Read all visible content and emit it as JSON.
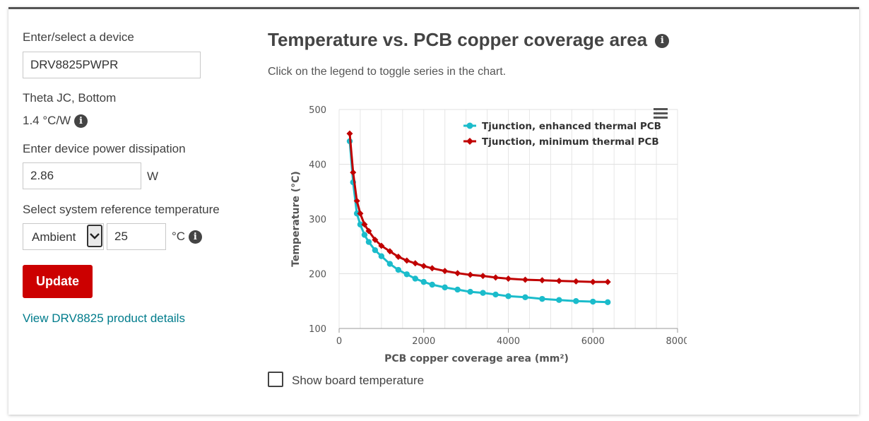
{
  "left_panel": {
    "device_label": "Enter/select a device",
    "device_value": "DRV8825PWPR",
    "theta_label": "Theta JC, Bottom",
    "theta_value": "1.4 °C/W",
    "power_label": "Enter device power dissipation",
    "power_value": "2.86",
    "power_unit": "W",
    "ref_temp_label": "Select system reference temperature",
    "ref_temp_option": "Ambient",
    "ref_temp_value": "25",
    "ref_temp_unit": "°C",
    "update_button": "Update",
    "details_link": "View DRV8825 product details"
  },
  "main": {
    "title": "Temperature vs. PCB copper coverage area",
    "subtitle": "Click on the legend to toggle series in the chart.",
    "show_board_label": "Show board temperature",
    "show_board_checked": false
  },
  "icons": {
    "info": "info-icon",
    "menu": "hamburger-menu-icon",
    "select": "chevron-down-icon"
  },
  "colors": {
    "accent_red": "#cc0000",
    "link_teal": "#007c8c",
    "series_enhanced": "#1bbccb",
    "series_minimum": "#c00000"
  },
  "chart_data": {
    "type": "line",
    "xlabel": "PCB copper coverage area (mm²)",
    "ylabel": "Temperature (°C)",
    "xlim": [
      0,
      8000
    ],
    "ylim": [
      100,
      500
    ],
    "xticks": [
      0,
      2000,
      4000,
      6000,
      8000
    ],
    "yticks": [
      100,
      200,
      300,
      400,
      500
    ],
    "grid": true,
    "legend_position": "top-right",
    "series": [
      {
        "name": "Tjunction, enhanced thermal PCB",
        "marker": "circle",
        "color": "#1bbccb",
        "points": [
          [
            250,
            442
          ],
          [
            330,
            367
          ],
          [
            420,
            310
          ],
          [
            500,
            290
          ],
          [
            600,
            271
          ],
          [
            700,
            258
          ],
          [
            850,
            243
          ],
          [
            1000,
            232
          ],
          [
            1200,
            218
          ],
          [
            1400,
            207
          ],
          [
            1600,
            199
          ],
          [
            1800,
            191
          ],
          [
            2000,
            185
          ],
          [
            2200,
            180
          ],
          [
            2500,
            175
          ],
          [
            2800,
            171
          ],
          [
            3100,
            167
          ],
          [
            3400,
            165
          ],
          [
            3700,
            162
          ],
          [
            4000,
            159
          ],
          [
            4400,
            157
          ],
          [
            4800,
            154
          ],
          [
            5200,
            152
          ],
          [
            5600,
            150
          ],
          [
            6000,
            149
          ],
          [
            6350,
            148
          ]
        ]
      },
      {
        "name": "Tjunction, minimum thermal PCB",
        "marker": "diamond",
        "color": "#c00000",
        "points": [
          [
            250,
            456
          ],
          [
            330,
            385
          ],
          [
            420,
            333
          ],
          [
            500,
            310
          ],
          [
            600,
            290
          ],
          [
            700,
            278
          ],
          [
            850,
            262
          ],
          [
            1000,
            251
          ],
          [
            1200,
            241
          ],
          [
            1400,
            231
          ],
          [
            1600,
            224
          ],
          [
            1800,
            219
          ],
          [
            2000,
            214
          ],
          [
            2200,
            210
          ],
          [
            2500,
            205
          ],
          [
            2800,
            201
          ],
          [
            3100,
            198
          ],
          [
            3400,
            196
          ],
          [
            3700,
            193
          ],
          [
            4000,
            191
          ],
          [
            4400,
            189
          ],
          [
            4800,
            188
          ],
          [
            5200,
            187
          ],
          [
            5600,
            186
          ],
          [
            6000,
            185
          ],
          [
            6350,
            185
          ]
        ]
      }
    ]
  }
}
